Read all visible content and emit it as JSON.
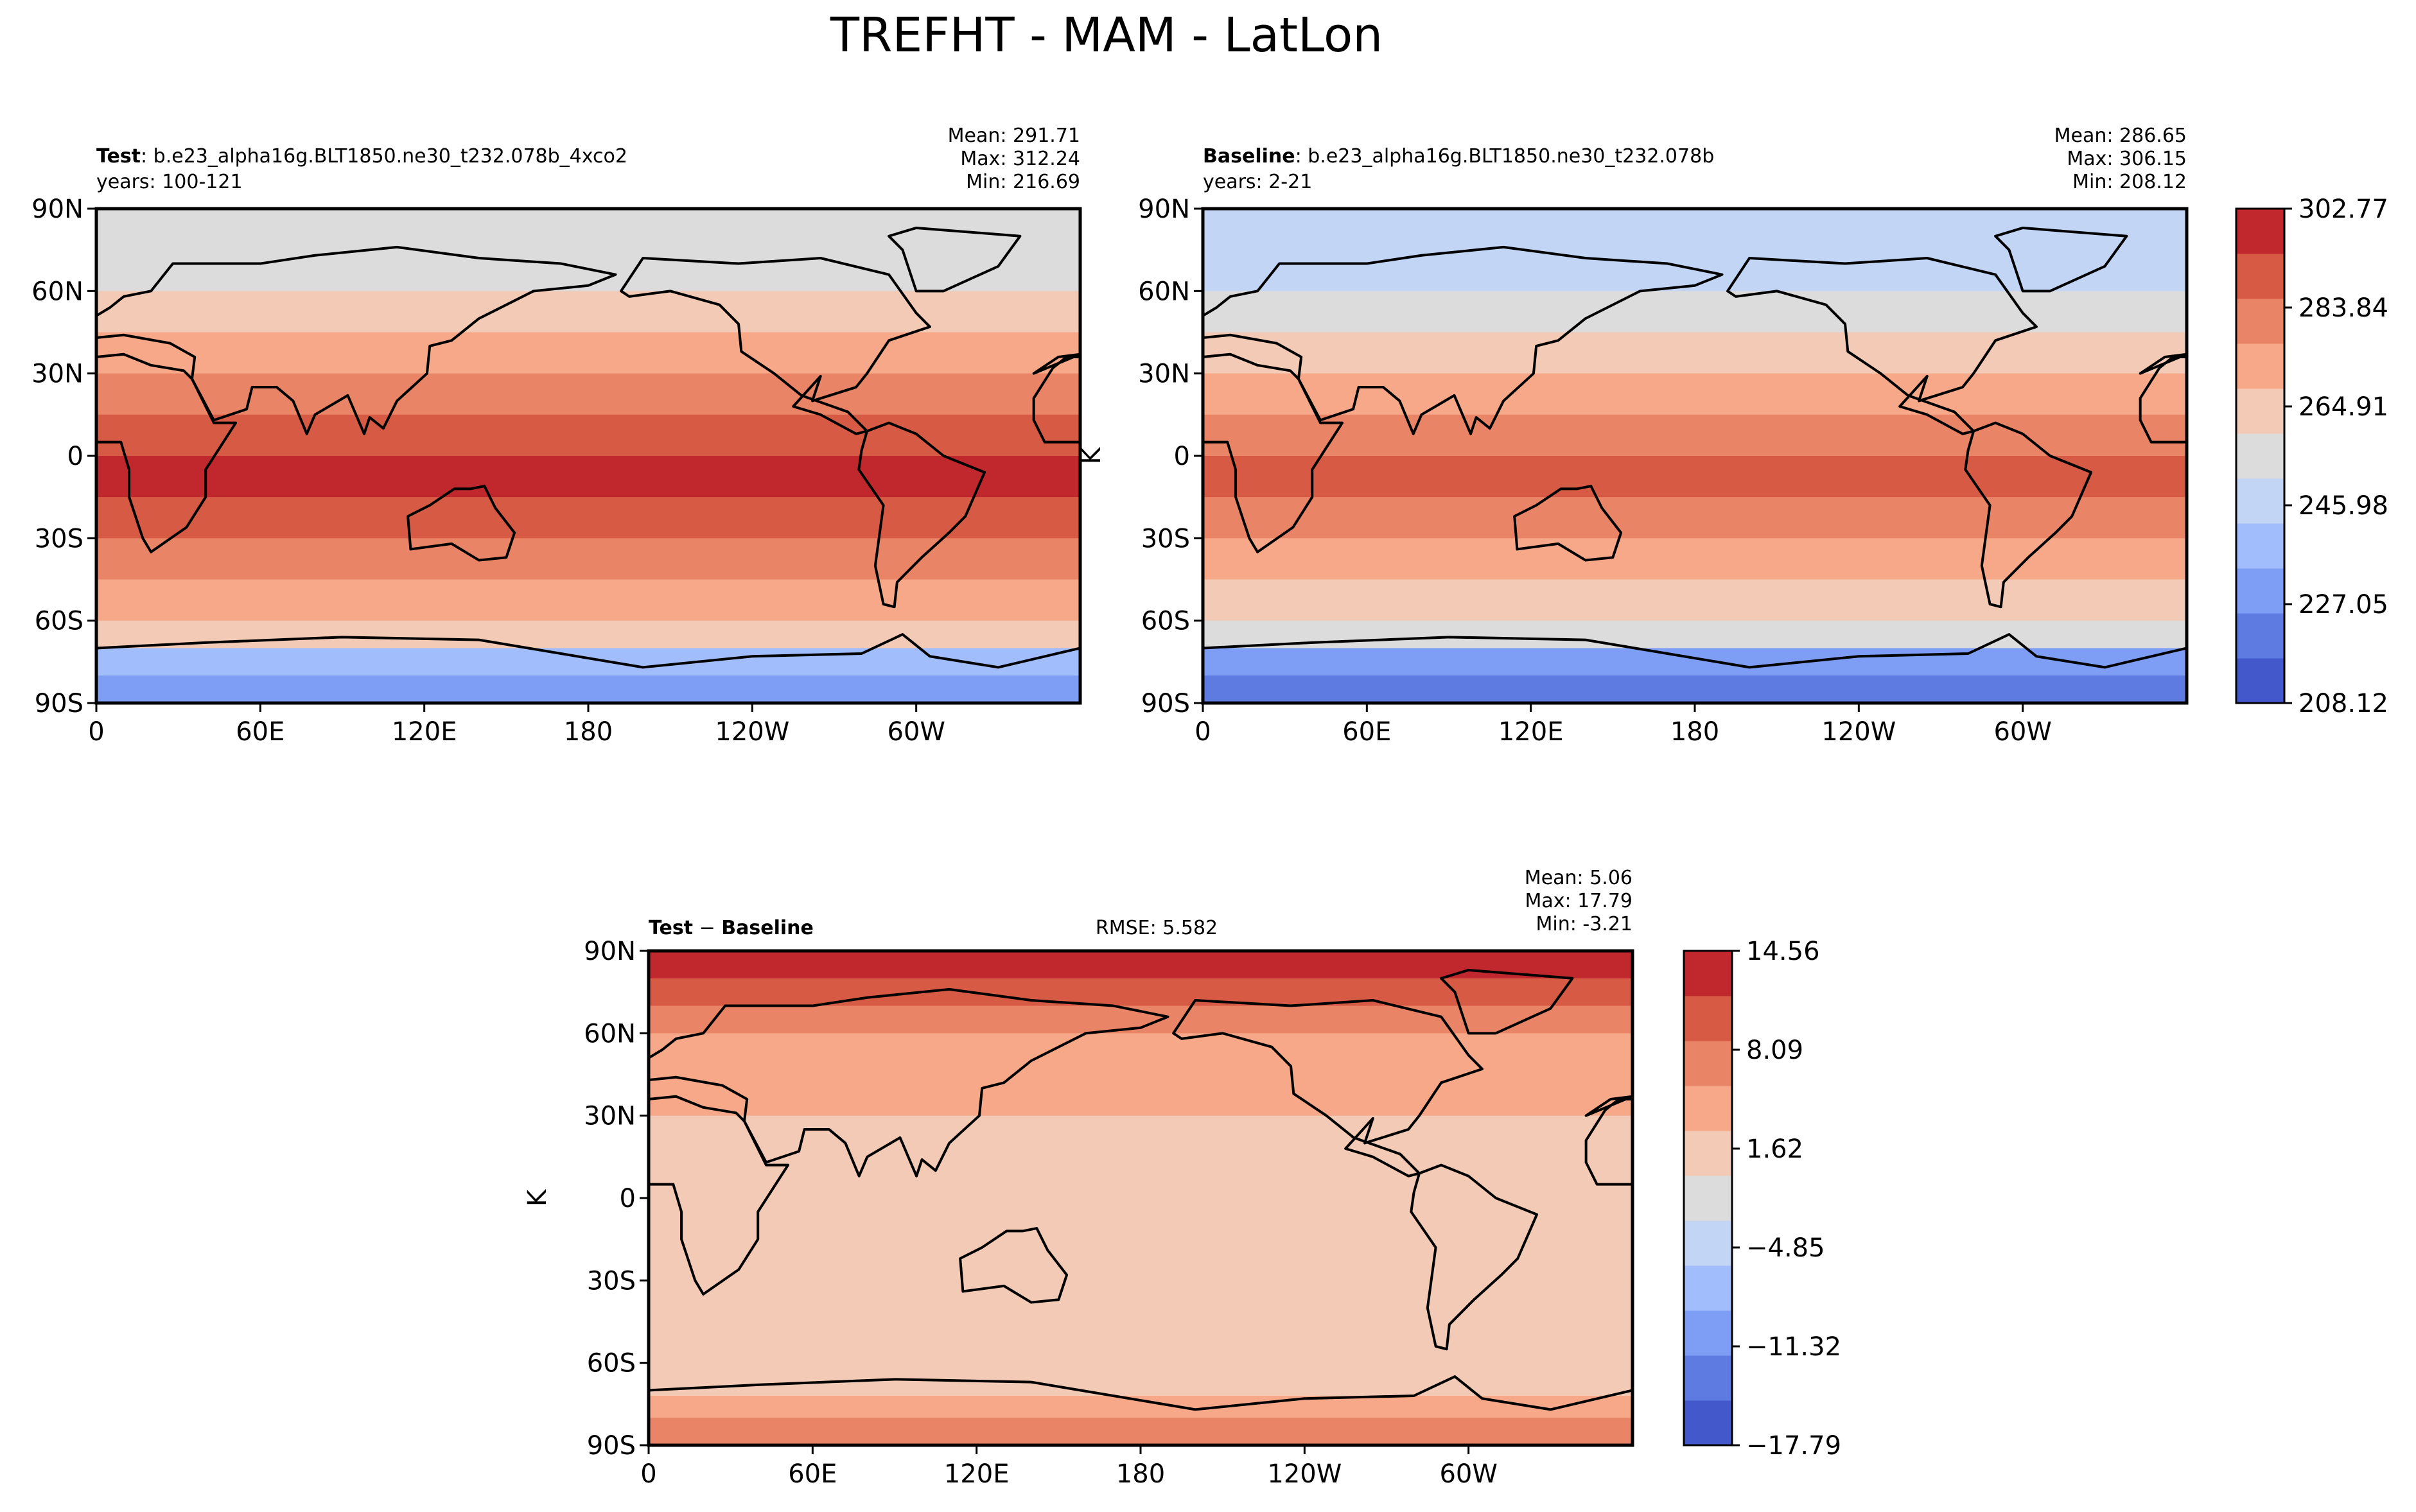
{
  "title": "TREFHT - MAM - LatLon",
  "colors": {
    "absolute_levels": [
      "#4358cb",
      "#5d7be1",
      "#7e9ef5",
      "#a1bdfb",
      "#c2d5f5",
      "#dddcdc",
      "#f2cab5",
      "#f6a889",
      "#ea8466",
      "#d75a45",
      "#c0282d"
    ],
    "difference_levels": [
      "#4358cb",
      "#5d7be1",
      "#7e9ef5",
      "#a1bdfb",
      "#c2d5f5",
      "#dddcdc",
      "#f2cab5",
      "#f6a889",
      "#ea8466",
      "#d75a45",
      "#c0282d"
    ]
  },
  "chart_data": [
    {
      "type": "heatmap",
      "panel": "test",
      "label_bold": "Test",
      "label_rest": ": b.e23_alpha16g.BLT1850.ne30_t232.078b_4xco2",
      "years": "years: 100-121",
      "stats": [
        "Mean: 291.71",
        "Max: 312.24",
        "Min: 216.69"
      ],
      "ylabel": "",
      "x_ticks": [
        "0",
        "60E",
        "120E",
        "180",
        "120W",
        "60W"
      ],
      "y_ticks": [
        "90N",
        "60N",
        "30N",
        "0",
        "30S",
        "60S",
        "90S"
      ],
      "xlim": [
        0,
        360
      ],
      "ylim": [
        -90,
        90
      ],
      "zonal_band_levels": [
        {
          "lat": 90,
          "level": 5
        },
        {
          "lat": 75,
          "level": 5
        },
        {
          "lat": 60,
          "level": 6
        },
        {
          "lat": 45,
          "level": 7
        },
        {
          "lat": 30,
          "level": 8
        },
        {
          "lat": 15,
          "level": 9
        },
        {
          "lat": 0,
          "level": 10
        },
        {
          "lat": -15,
          "level": 9
        },
        {
          "lat": -30,
          "level": 8
        },
        {
          "lat": -45,
          "level": 7
        },
        {
          "lat": -60,
          "level": 6
        },
        {
          "lat": -70,
          "level": 3
        },
        {
          "lat": -80,
          "level": 2
        },
        {
          "lat": -90,
          "level": 1
        }
      ]
    },
    {
      "type": "heatmap",
      "panel": "baseline",
      "label_bold": "Baseline",
      "label_rest": ": b.e23_alpha16g.BLT1850.ne30_t232.078b",
      "years": "years: 2-21",
      "stats": [
        "Mean: 286.65",
        "Max: 306.15",
        "Min: 208.12"
      ],
      "ylabel": "K",
      "x_ticks": [
        "0",
        "60E",
        "120E",
        "180",
        "120W",
        "60W"
      ],
      "y_ticks": [
        "90N",
        "60N",
        "30N",
        "0",
        "30S",
        "60S",
        "90S"
      ],
      "xlim": [
        0,
        360
      ],
      "ylim": [
        -90,
        90
      ],
      "colorbar_ticks": [
        "302.77",
        "283.84",
        "264.91",
        "245.98",
        "227.05",
        "208.12"
      ],
      "zonal_band_levels": [
        {
          "lat": 90,
          "level": 4
        },
        {
          "lat": 75,
          "level": 4
        },
        {
          "lat": 60,
          "level": 5
        },
        {
          "lat": 45,
          "level": 6
        },
        {
          "lat": 30,
          "level": 7
        },
        {
          "lat": 15,
          "level": 8
        },
        {
          "lat": 0,
          "level": 9
        },
        {
          "lat": -15,
          "level": 8
        },
        {
          "lat": -30,
          "level": 7
        },
        {
          "lat": -45,
          "level": 6
        },
        {
          "lat": -60,
          "level": 5
        },
        {
          "lat": -70,
          "level": 2
        },
        {
          "lat": -80,
          "level": 1
        },
        {
          "lat": -90,
          "level": 0
        }
      ]
    },
    {
      "type": "heatmap",
      "panel": "difference",
      "label_bold": "Test",
      "label_mid": " − ",
      "label_bold2": "Baseline",
      "rmse": "RMSE: 5.582",
      "stats": [
        "Mean:  5.06",
        "Max: 17.79",
        "Min: -3.21"
      ],
      "ylabel": "K",
      "x_ticks": [
        "0",
        "60E",
        "120E",
        "180",
        "120W",
        "60W"
      ],
      "y_ticks": [
        "90N",
        "60N",
        "30N",
        "0",
        "30S",
        "60S",
        "90S"
      ],
      "xlim": [
        0,
        360
      ],
      "ylim": [
        -90,
        90
      ],
      "colorbar_ticks": [
        "14.56",
        "8.09",
        "1.62",
        "−4.85",
        "−11.32",
        "−17.79"
      ],
      "zonal_band_levels": [
        {
          "lat": 90,
          "level": 10
        },
        {
          "lat": 80,
          "level": 9
        },
        {
          "lat": 70,
          "level": 8
        },
        {
          "lat": 60,
          "level": 7
        },
        {
          "lat": 45,
          "level": 7
        },
        {
          "lat": 30,
          "level": 6
        },
        {
          "lat": 0,
          "level": 6
        },
        {
          "lat": -30,
          "level": 6
        },
        {
          "lat": -60,
          "level": 6
        },
        {
          "lat": -72,
          "level": 7
        },
        {
          "lat": -80,
          "level": 8
        },
        {
          "lat": -90,
          "level": 7
        }
      ]
    }
  ]
}
